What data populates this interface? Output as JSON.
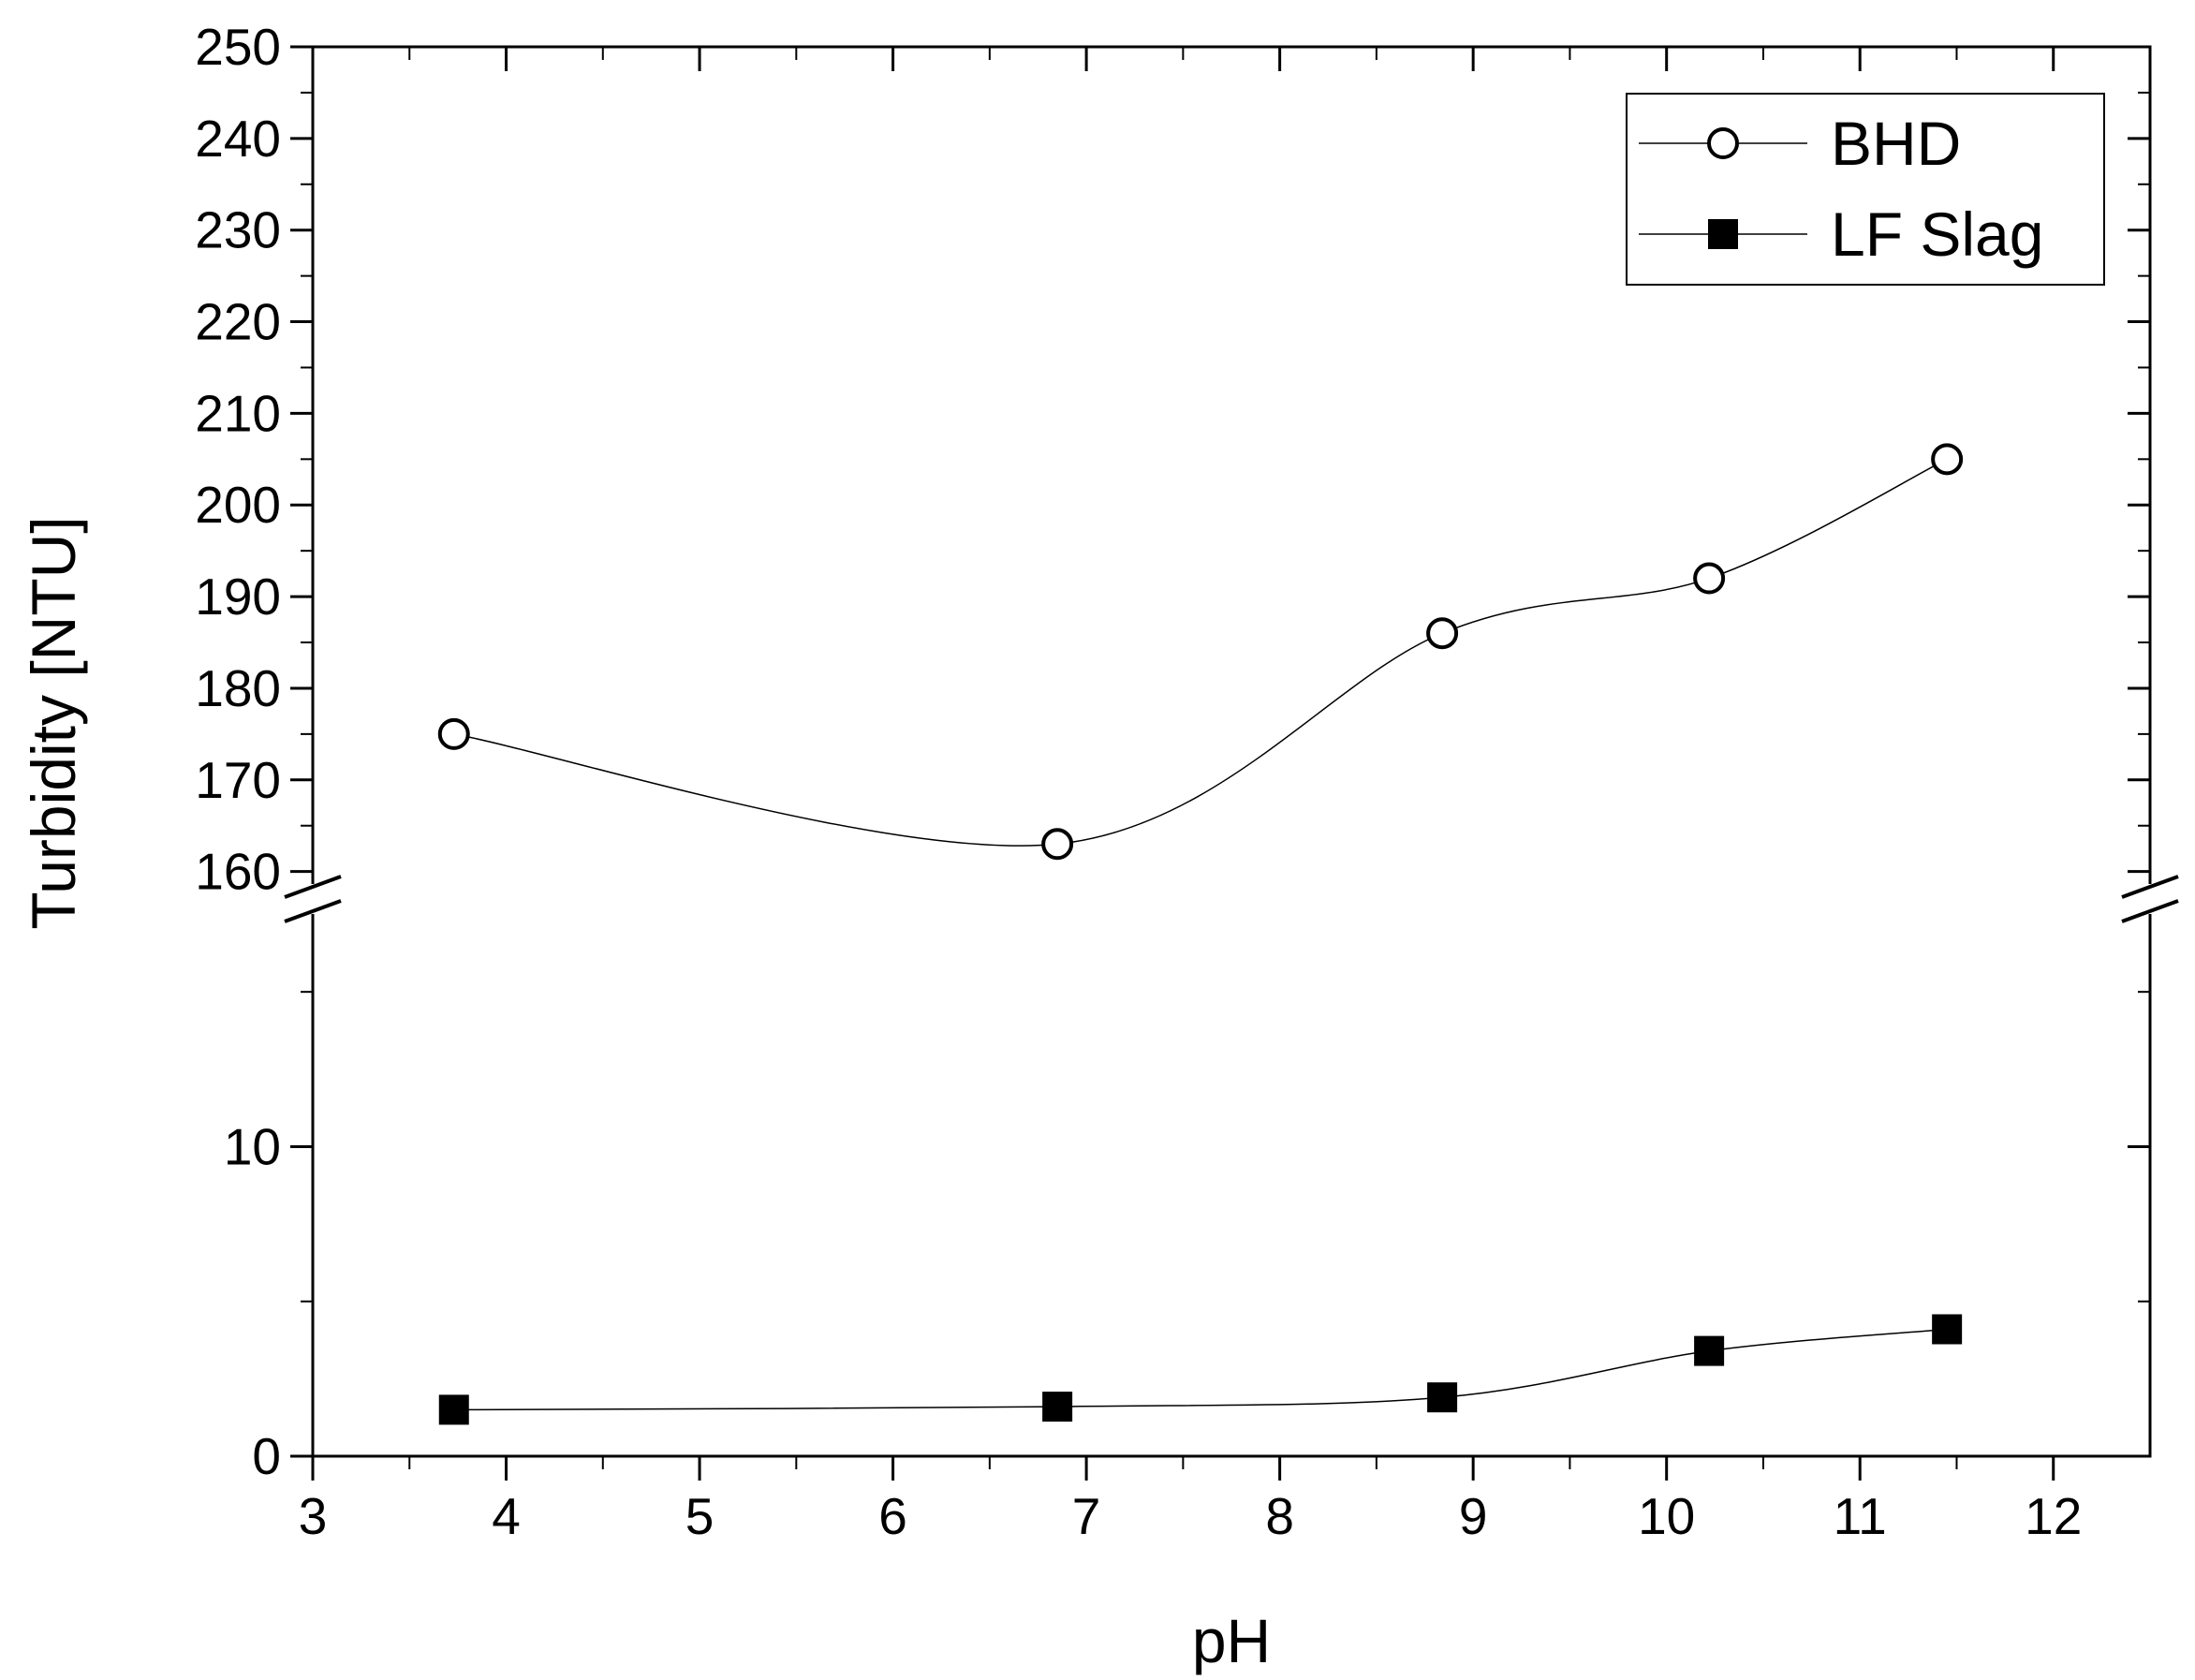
{
  "chart_data": {
    "type": "line",
    "xlabel": "pH",
    "ylabel": "Turbidity [NTU]",
    "xlim": [
      3,
      12.5
    ],
    "x_ticks": [
      3,
      4,
      5,
      6,
      7,
      8,
      9,
      10,
      11,
      12
    ],
    "y_axis_break": true,
    "ylim_lower": [
      0,
      18
    ],
    "ylim_upper": [
      157,
      250
    ],
    "y_ticks_lower": [
      0,
      10
    ],
    "y_ticks_upper": [
      160,
      170,
      180,
      190,
      200,
      210,
      220,
      230,
      240,
      250
    ],
    "legend_position": "top-right",
    "grid": false,
    "series": [
      {
        "name": "BHD",
        "marker": "open-circle",
        "x": [
          3.73,
          6.85,
          8.84,
          10.22,
          11.45
        ],
        "y": [
          175,
          163,
          186,
          192,
          205
        ]
      },
      {
        "name": "LF Slag",
        "marker": "filled-square",
        "x": [
          3.73,
          6.85,
          8.84,
          10.22,
          11.45
        ],
        "y": [
          1.5,
          1.6,
          1.9,
          3.4,
          4.1
        ]
      }
    ]
  }
}
